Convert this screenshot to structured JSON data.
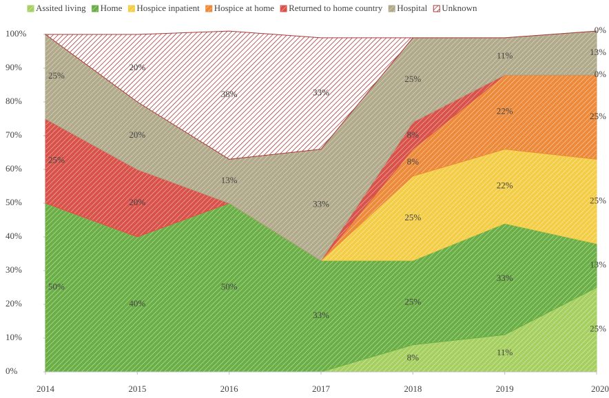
{
  "chart_data": {
    "type": "stacked_area",
    "categories": [
      "2014",
      "2015",
      "2016",
      "2017",
      "2018",
      "2019",
      "2020"
    ],
    "series": [
      {
        "name": "Assited living",
        "color": "#a5cf5f",
        "values": [
          0,
          0,
          0,
          0,
          8,
          11,
          25
        ],
        "value_labels": [
          null,
          null,
          null,
          null,
          "8%",
          "11%",
          "25%"
        ]
      },
      {
        "name": "Home",
        "color": "#6aaf45",
        "values": [
          50,
          40,
          50,
          33,
          25,
          33,
          13
        ],
        "value_labels": [
          "50%",
          "40%",
          "50%",
          "33%",
          "25%",
          "33%",
          "13%"
        ]
      },
      {
        "name": "Hospice inpatient",
        "color": "#f3cd45",
        "values": [
          0,
          0,
          0,
          0,
          25,
          22,
          25
        ],
        "value_labels": [
          null,
          null,
          null,
          null,
          "25%",
          "22%",
          "25%"
        ]
      },
      {
        "name": "Hospice at home",
        "color": "#ec8a3a",
        "values": [
          0,
          0,
          0,
          0,
          8,
          22,
          25
        ],
        "value_labels": [
          null,
          null,
          null,
          null,
          "8%",
          "22%",
          "25%"
        ]
      },
      {
        "name": "Returned to home country",
        "color": "#d8524a",
        "values": [
          25,
          20,
          0,
          0,
          8,
          0,
          0
        ],
        "value_labels": [
          "25%",
          "20%",
          null,
          null,
          "8%",
          null,
          "0%"
        ]
      },
      {
        "name": "Hospital",
        "color": "#b0a98a",
        "values": [
          25,
          20,
          13,
          33,
          25,
          11,
          13
        ],
        "value_labels": [
          "25%",
          "20%",
          "13%",
          "33%",
          "25%",
          "11%",
          "13%"
        ]
      },
      {
        "name": "Unknown",
        "color": "#a83a3a",
        "hatch_only": true,
        "values": [
          0,
          20,
          38,
          33,
          0,
          0,
          0
        ],
        "value_labels": [
          null,
          "20%",
          "38%",
          "33%",
          null,
          null,
          "0%"
        ]
      }
    ],
    "ylim": [
      0,
      100
    ],
    "yticks": [
      {
        "value": 0,
        "label": "0%"
      },
      {
        "value": 10,
        "label": "10%"
      },
      {
        "value": 20,
        "label": "20%"
      },
      {
        "value": 30,
        "label": "30%"
      },
      {
        "value": 40,
        "label": "40%"
      },
      {
        "value": 50,
        "label": "50%"
      },
      {
        "value": 60,
        "label": "60%"
      },
      {
        "value": 70,
        "label": "70%"
      },
      {
        "value": 80,
        "label": "80%"
      },
      {
        "value": 90,
        "label": "90%"
      },
      {
        "value": 100,
        "label": "100%"
      }
    ],
    "legend": "top"
  }
}
